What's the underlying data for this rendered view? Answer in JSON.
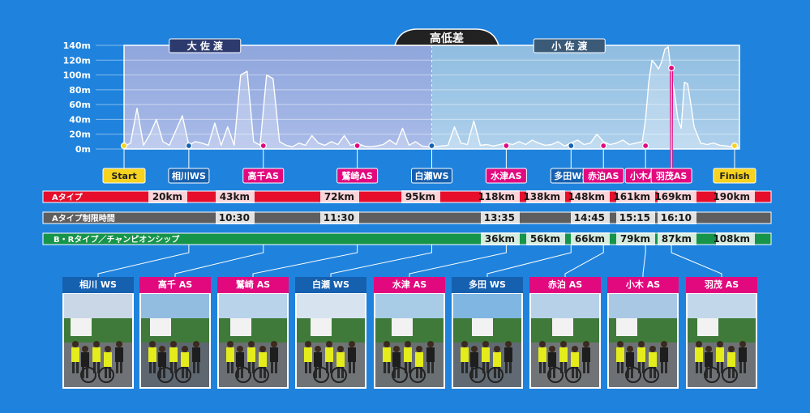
{
  "chart_data": {
    "type": "area",
    "title": "高低差",
    "regions": [
      {
        "name": "大 佐 渡",
        "x_from": 0,
        "x_to": 95
      },
      {
        "name": "小 佐 渡",
        "x_from": 95,
        "x_to": 190
      }
    ],
    "ylim": [
      0,
      140
    ],
    "yticks": [
      "0m",
      "20m",
      "40m",
      "60m",
      "80m",
      "100m",
      "120m",
      "140m"
    ],
    "xlim": [
      0,
      190
    ],
    "grid": true,
    "profile": {
      "x": [
        0,
        2,
        4,
        6,
        8,
        10,
        12,
        14,
        16,
        18,
        20,
        22,
        24,
        26,
        28,
        30,
        32,
        34,
        36,
        38,
        40,
        42,
        44,
        46,
        48,
        50,
        52,
        54,
        56,
        58,
        60,
        62,
        64,
        66,
        68,
        70,
        72,
        74,
        76,
        78,
        80,
        82,
        84,
        86,
        88,
        90,
        92,
        94,
        96,
        98,
        100,
        102,
        104,
        106,
        108,
        110,
        112,
        114,
        116,
        118,
        120,
        122,
        124,
        126,
        128,
        130,
        132,
        134,
        136,
        138,
        140,
        142,
        144,
        146,
        148,
        150,
        152,
        154,
        156,
        158,
        160,
        161,
        162,
        163,
        164,
        165,
        166,
        167,
        168,
        169,
        170,
        171,
        172,
        173,
        174,
        175,
        176,
        178,
        180,
        182,
        184,
        186,
        188,
        190
      ],
      "y": [
        3,
        8,
        55,
        5,
        20,
        40,
        10,
        5,
        25,
        45,
        5,
        10,
        8,
        5,
        35,
        5,
        30,
        5,
        100,
        105,
        10,
        5,
        100,
        95,
        10,
        5,
        3,
        8,
        5,
        18,
        8,
        5,
        10,
        6,
        18,
        5,
        8,
        4,
        3,
        4,
        6,
        12,
        6,
        28,
        5,
        10,
        4,
        3,
        3,
        4,
        5,
        30,
        8,
        6,
        38,
        5,
        6,
        4,
        6,
        8,
        6,
        10,
        6,
        12,
        8,
        5,
        6,
        10,
        4,
        8,
        12,
        6,
        8,
        20,
        10,
        6,
        8,
        12,
        6,
        8,
        10,
        40,
        90,
        120,
        115,
        108,
        118,
        135,
        138,
        100,
        75,
        40,
        28,
        90,
        88,
        60,
        30,
        8,
        6,
        8,
        5,
        4,
        3,
        2
      ]
    },
    "stations": [
      {
        "name": "Start",
        "km": 0,
        "type": "start"
      },
      {
        "name": "相川WS",
        "km": 20,
        "type": "ws"
      },
      {
        "name": "高千AS",
        "km": 43,
        "type": "as"
      },
      {
        "name": "鷲崎AS",
        "km": 72,
        "type": "as"
      },
      {
        "name": "白瀬WS",
        "km": 95,
        "type": "ws"
      },
      {
        "name": "水津AS",
        "km": 118,
        "type": "as"
      },
      {
        "name": "多田WS",
        "km": 138,
        "type": "ws"
      },
      {
        "name": "赤泊AS",
        "km": 148,
        "type": "as"
      },
      {
        "name": "小木AS",
        "km": 161,
        "type": "as"
      },
      {
        "name": "羽茂AS",
        "km": 169,
        "type": "as"
      },
      {
        "name": "Finish",
        "km": 190,
        "type": "finish"
      }
    ],
    "rows": [
      {
        "name": "Aタイプ",
        "color": "#e60e2b",
        "cells": [
          "20km",
          "43km",
          "72km",
          "95km",
          "118km",
          "138km",
          "148km",
          "161km",
          "169km",
          "190km"
        ]
      },
      {
        "name": "Aタイプ制限時間",
        "color": "#5e5e5e",
        "cells": [
          "",
          "10:30",
          "11:30",
          "",
          "13:35",
          "",
          "14:45",
          "15:15",
          "16:10",
          ""
        ]
      },
      {
        "name": "B・Rタイプ／チャンピオンシップ",
        "color": "#16944a",
        "cells": [
          "",
          "",
          "",
          "",
          "36km",
          "56km",
          "66km",
          "79km",
          "87km",
          "108km"
        ]
      }
    ],
    "photos": [
      "相川 WS",
      "高千 AS",
      "鷲崎 AS",
      "白瀬 WS",
      "水津 AS",
      "多田 WS",
      "赤泊 AS",
      "小木 AS",
      "羽茂 AS"
    ]
  },
  "colors": {
    "background": "#1f83dd",
    "ws": "#1660b0",
    "as": "#e2097f",
    "start_finish": "#f7d21e",
    "region_dark": "#2d3a6e",
    "region_light": "#3a5a78"
  }
}
